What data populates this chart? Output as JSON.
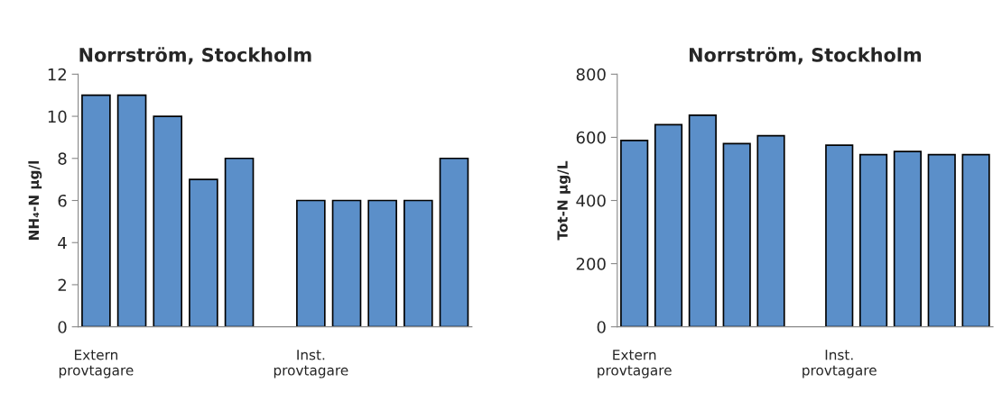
{
  "chart_data": [
    {
      "type": "bar",
      "title": "Norrström, Stockholm",
      "ylabel": "NH₄-N µg/l",
      "categories": [
        "Extern\nprovtagare",
        null,
        null,
        null,
        null,
        null,
        "Inst.\nprovtagare",
        null,
        null,
        null,
        null
      ],
      "values": [
        11,
        11,
        10,
        7,
        8,
        null,
        6,
        6,
        6,
        6,
        8
      ],
      "color": "#5b8fc9",
      "ylim": [
        0,
        12
      ],
      "yticks": [
        0,
        2,
        4,
        6,
        8,
        10,
        12
      ],
      "grid": false,
      "legend": false
    },
    {
      "type": "bar",
      "title": "Norrström, Stockholm",
      "ylabel": "Tot-N µg/L",
      "categories": [
        "Extern\nprovtagare",
        null,
        null,
        null,
        null,
        null,
        "Inst.\nprovtagare",
        null,
        null,
        null,
        null
      ],
      "values": [
        590,
        640,
        670,
        580,
        605,
        null,
        575,
        545,
        555,
        545,
        545
      ],
      "color": "#5b8fc9",
      "ylim": [
        0,
        800
      ],
      "yticks": [
        0,
        200,
        400,
        600,
        800
      ],
      "grid": false,
      "legend": false
    }
  ]
}
